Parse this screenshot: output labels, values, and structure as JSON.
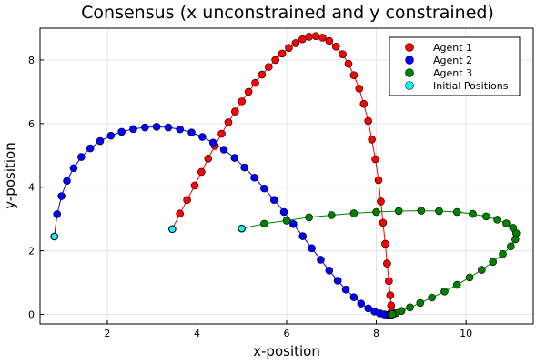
{
  "chart_data": {
    "type": "scatter",
    "title": "Consensus (x unconstrained and y constrained)",
    "xlabel": "x-position",
    "ylabel": "y-position",
    "xlim": [
      0.5,
      11.5
    ],
    "ylim": [
      -0.3,
      9.0
    ],
    "xticks": [
      2,
      4,
      6,
      8,
      10
    ],
    "yticks": [
      0,
      2,
      4,
      6,
      8
    ],
    "grid": true,
    "legend_position": "top-right",
    "series": [
      {
        "name": "Agent 1",
        "color": "#ff0000",
        "x": [
          3.45,
          3.62,
          3.78,
          3.95,
          4.1,
          4.25,
          4.4,
          4.55,
          4.7,
          4.85,
          5.0,
          5.15,
          5.3,
          5.45,
          5.6,
          5.75,
          5.9,
          6.05,
          6.2,
          6.35,
          6.5,
          6.65,
          6.8,
          6.95,
          7.1,
          7.25,
          7.38,
          7.5,
          7.62,
          7.72,
          7.82,
          7.9,
          7.98,
          8.05,
          8.1,
          8.15,
          8.2,
          8.24,
          8.28,
          8.31,
          8.33,
          8.34,
          8.35
        ],
        "y": [
          2.68,
          3.17,
          3.6,
          4.05,
          4.48,
          4.9,
          5.3,
          5.68,
          6.04,
          6.38,
          6.7,
          7.0,
          7.28,
          7.54,
          7.78,
          8.0,
          8.2,
          8.38,
          8.53,
          8.65,
          8.73,
          8.75,
          8.7,
          8.6,
          8.42,
          8.18,
          7.88,
          7.52,
          7.1,
          6.62,
          6.08,
          5.5,
          4.88,
          4.22,
          3.55,
          2.88,
          2.22,
          1.6,
          1.05,
          0.6,
          0.28,
          0.08,
          0.0
        ]
      },
      {
        "name": "Agent 2",
        "color": "#0000ff",
        "x": [
          0.82,
          0.88,
          0.98,
          1.1,
          1.25,
          1.42,
          1.62,
          1.84,
          2.08,
          2.32,
          2.58,
          2.84,
          3.1,
          3.36,
          3.62,
          3.88,
          4.12,
          4.36,
          4.6,
          4.84,
          5.06,
          5.28,
          5.5,
          5.72,
          5.94,
          6.15,
          6.36,
          6.56,
          6.76,
          6.95,
          7.14,
          7.32,
          7.5,
          7.66,
          7.82,
          7.96,
          8.08,
          8.18,
          8.26,
          8.31,
          8.34,
          8.35
        ],
        "y": [
          2.45,
          3.15,
          3.72,
          4.2,
          4.6,
          4.95,
          5.22,
          5.45,
          5.62,
          5.74,
          5.83,
          5.88,
          5.9,
          5.88,
          5.82,
          5.72,
          5.58,
          5.4,
          5.18,
          4.92,
          4.62,
          4.3,
          3.96,
          3.6,
          3.22,
          2.84,
          2.46,
          2.08,
          1.72,
          1.38,
          1.06,
          0.78,
          0.54,
          0.34,
          0.19,
          0.09,
          0.03,
          0.0,
          -0.02,
          -0.02,
          -0.01,
          0.0
        ]
      },
      {
        "name": "Agent 3",
        "color": "#008000",
        "x": [
          5.0,
          5.5,
          6.0,
          6.5,
          7.0,
          7.5,
          8.0,
          8.5,
          9.0,
          9.4,
          9.8,
          10.15,
          10.45,
          10.7,
          10.9,
          11.05,
          11.12,
          11.1,
          11.0,
          10.82,
          10.6,
          10.35,
          10.08,
          9.8,
          9.52,
          9.24,
          8.98,
          8.75,
          8.56,
          8.44,
          8.37,
          8.35
        ],
        "y": [
          2.7,
          2.85,
          2.95,
          3.05,
          3.12,
          3.18,
          3.22,
          3.25,
          3.26,
          3.25,
          3.22,
          3.16,
          3.08,
          2.98,
          2.86,
          2.72,
          2.55,
          2.36,
          2.14,
          1.9,
          1.65,
          1.4,
          1.16,
          0.93,
          0.72,
          0.53,
          0.36,
          0.22,
          0.11,
          0.04,
          0.01,
          0.0
        ]
      },
      {
        "name": "Initial Positions",
        "color": "#00ffff",
        "x": [
          3.45,
          0.82,
          5.0
        ],
        "y": [
          2.68,
          2.45,
          2.7
        ]
      }
    ]
  }
}
